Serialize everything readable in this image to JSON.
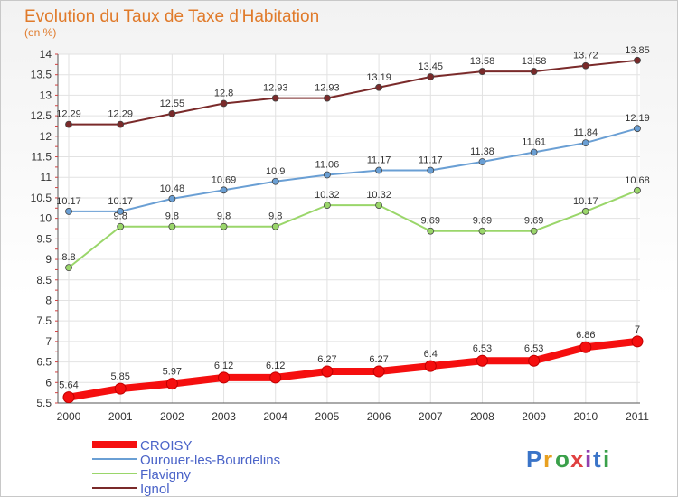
{
  "chart_data": {
    "type": "line",
    "title": "Evolution du Taux de Taxe d'Habitation",
    "subtitle": "(en %)",
    "x": [
      "2000",
      "2001",
      "2002",
      "2003",
      "2004",
      "2005",
      "2006",
      "2007",
      "2008",
      "2009",
      "2010",
      "2011"
    ],
    "ylim": [
      5.5,
      14
    ],
    "yticks": [
      5.5,
      6,
      6.5,
      7,
      7.5,
      8,
      8.5,
      9,
      9.5,
      10,
      10.5,
      11,
      11.5,
      12,
      12.5,
      13,
      13.5,
      14
    ],
    "grid": true,
    "legend_position": "bottom-left",
    "series": [
      {
        "name": "CROISY",
        "color": "#f50f0f",
        "values": [
          5.64,
          5.85,
          5.97,
          6.12,
          6.12,
          6.27,
          6.27,
          6.4,
          6.53,
          6.53,
          6.86,
          7
        ],
        "labels": [
          "5.64",
          "5.85",
          "5.97",
          "6.12",
          "6.12",
          "6.27",
          "6.27",
          "6.4",
          "6.53",
          "6.53",
          "6.86",
          "7"
        ]
      },
      {
        "name": "Ourouer-les-Bourdelins",
        "color": "#6a9fd4",
        "values": [
          10.17,
          10.17,
          10.48,
          10.69,
          10.9,
          11.06,
          11.17,
          11.17,
          11.38,
          11.61,
          11.84,
          12.19
        ],
        "labels": [
          "10.17",
          "10.17",
          "10.48",
          "10.69",
          "10.9",
          "11.06",
          "11.17",
          "11.17",
          "11.38",
          "11.61",
          "11.84",
          "12.19"
        ]
      },
      {
        "name": "Flavigny",
        "color": "#9ad66a",
        "values": [
          8.8,
          9.8,
          9.8,
          9.8,
          9.8,
          10.32,
          10.32,
          9.69,
          9.69,
          9.69,
          10.17,
          10.68
        ],
        "labels": [
          "8.8",
          "9.8",
          "9.8",
          "9.8",
          "9.8",
          "10.32",
          "10.32",
          "9.69",
          "9.69",
          "9.69",
          "10.17",
          "10.68"
        ]
      },
      {
        "name": "Ignol",
        "color": "#7a2a2a",
        "values": [
          12.29,
          12.29,
          12.55,
          12.8,
          12.93,
          12.93,
          13.19,
          13.45,
          13.58,
          13.58,
          13.72,
          13.85
        ],
        "labels": [
          "12.29",
          "12.29",
          "12.55",
          "12.8",
          "12.93",
          "12.93",
          "13.19",
          "13.45",
          "13.58",
          "13.58",
          "13.72",
          "13.85"
        ]
      }
    ]
  },
  "logo": {
    "letters": [
      "P",
      "r",
      "o",
      "x",
      "i",
      "t",
      "i"
    ],
    "colors": [
      "#3a74c8",
      "#e8a020",
      "#3aa04a",
      "#e04040",
      "#9040b0",
      "#3a74c8",
      "#3aa04a"
    ]
  }
}
